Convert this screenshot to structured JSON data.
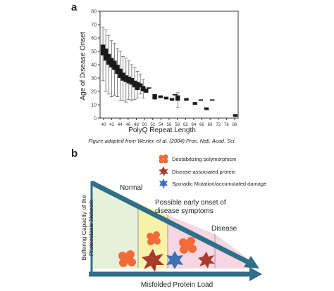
{
  "panel_a": {
    "letter": "a",
    "caption": "Figure adapted from Wexler, et al. (2004) Proc. Natl. Acad. Sci.",
    "chart_data": {
      "type": "box",
      "xlabel": "PolyQ Repeat Length",
      "ylabel": "Age of Disease Onset",
      "ylim": [
        0,
        80
      ],
      "yticks": [
        0,
        10,
        20,
        30,
        40,
        50,
        60,
        70,
        80
      ],
      "xtick_labels": [
        "40",
        "42",
        "44",
        "46",
        "48",
        "50",
        "52",
        "54",
        "56",
        "58",
        "62",
        "64",
        "66",
        "69",
        "72",
        "76",
        "86"
      ],
      "grid": false,
      "boxes": [
        {
          "x": 40,
          "q1": 47,
          "q3": 55,
          "whisker_low": 28,
          "whisker_high": 68
        },
        {
          "x": 41,
          "q1": 43,
          "q3": 52,
          "whisker_low": 20,
          "whisker_high": 66
        },
        {
          "x": 42,
          "q1": 40,
          "q3": 48,
          "whisker_low": 18,
          "whisker_high": 62
        },
        {
          "x": 43,
          "q1": 38,
          "q3": 45,
          "whisker_low": 16,
          "whisker_high": 58
        },
        {
          "x": 44,
          "q1": 36,
          "q3": 43,
          "whisker_low": 17,
          "whisker_high": 56
        },
        {
          "x": 45,
          "q1": 33,
          "q3": 40,
          "whisker_low": 16,
          "whisker_high": 52
        },
        {
          "x": 46,
          "q1": 30,
          "q3": 37,
          "whisker_low": 13,
          "whisker_high": 50
        },
        {
          "x": 47,
          "q1": 28,
          "q3": 34,
          "whisker_low": 13,
          "whisker_high": 46
        },
        {
          "x": 48,
          "q1": 27,
          "q3": 32,
          "whisker_low": 12,
          "whisker_high": 45
        },
        {
          "x": 49,
          "q1": 26,
          "q3": 31,
          "whisker_low": 14,
          "whisker_high": 43
        },
        {
          "x": 50,
          "q1": 25,
          "q3": 30,
          "whisker_low": 13,
          "whisker_high": 40
        },
        {
          "x": 51,
          "q1": 23,
          "q3": 28,
          "whisker_low": 14,
          "whisker_high": 38
        },
        {
          "x": 52,
          "q1": 21,
          "q3": 27,
          "whisker_low": 15,
          "whisker_high": 35
        },
        {
          "x": 53,
          "q1": 23,
          "q3": 26,
          "whisker_low": 18,
          "whisker_high": 33
        },
        {
          "x": 54,
          "q1": 20,
          "q3": 24,
          "whisker_low": 15,
          "whisker_high": 29
        },
        {
          "x": 55,
          "q1": 19,
          "q3": 22,
          "whisker_low": 19,
          "whisker_high": 22
        },
        {
          "x": 56,
          "q1": 22,
          "q3": 23,
          "whisker_low": 22,
          "whisker_high": 23
        },
        {
          "x": 58,
          "q1": 14,
          "q3": 18,
          "whisker_low": 14,
          "whisker_high": 18
        },
        {
          "x": 60,
          "q1": 15,
          "q3": 17,
          "whisker_low": 15,
          "whisker_high": 17
        },
        {
          "x": 62,
          "q1": 14,
          "q3": 16,
          "whisker_low": 14,
          "whisker_high": 16
        },
        {
          "x": 64,
          "q1": 13,
          "q3": 15,
          "whisker_low": 13,
          "whisker_high": 15
        },
        {
          "x": 65,
          "q1": 17,
          "q3": 18,
          "whisker_low": 17,
          "whisker_high": 18
        },
        {
          "x": 66,
          "q1": 13,
          "q3": 17,
          "whisker_low": 8,
          "whisker_high": 19
        },
        {
          "x": 69,
          "q1": 13,
          "q3": 15,
          "whisker_low": 13,
          "whisker_high": 15
        },
        {
          "x": 72,
          "q1": 10,
          "q3": 12,
          "whisker_low": 10,
          "whisker_high": 12
        },
        {
          "x": 74,
          "q1": 13,
          "q3": 14,
          "whisker_low": 13,
          "whisker_high": 14
        },
        {
          "x": 76,
          "q1": 6,
          "q3": 8,
          "whisker_low": 6,
          "whisker_high": 8
        },
        {
          "x": 78,
          "q1": 13,
          "q3": 14,
          "whisker_low": 13,
          "whisker_high": 14
        },
        {
          "x": 86,
          "q1": 1,
          "q3": 3,
          "whisker_low": 1,
          "whisker_high": 3
        }
      ]
    }
  },
  "panel_b": {
    "letter": "b",
    "legend": [
      {
        "label": "Destabilizing polymorphism",
        "color": "#f26b3a",
        "icon": "blob-icon"
      },
      {
        "label": "Disease-associated protein",
        "color": "#a83a2e",
        "icon": "starburst-icon"
      },
      {
        "label": "Sporadic Mutation/accumulated damage",
        "color": "#3f6fb5",
        "icon": "star-icon"
      }
    ],
    "normal_label": "Normal",
    "early_onset_label": "Possible early onset of disease symptoms",
    "disease_label": "Disease",
    "yaxis_label": "Buffering Capacity of the Proteostasis Network",
    "xaxis_label": "Misfolded Protein Load",
    "colors": {
      "arrow": "#2f6f8a",
      "green_zone": "#e6f2d8",
      "yellow_zone": "#f8f2a8",
      "pink_zone": "#f6d6e2",
      "blob": "#f26b3a",
      "starburst": "#a83a2e",
      "star": "#3f6fb5"
    }
  }
}
